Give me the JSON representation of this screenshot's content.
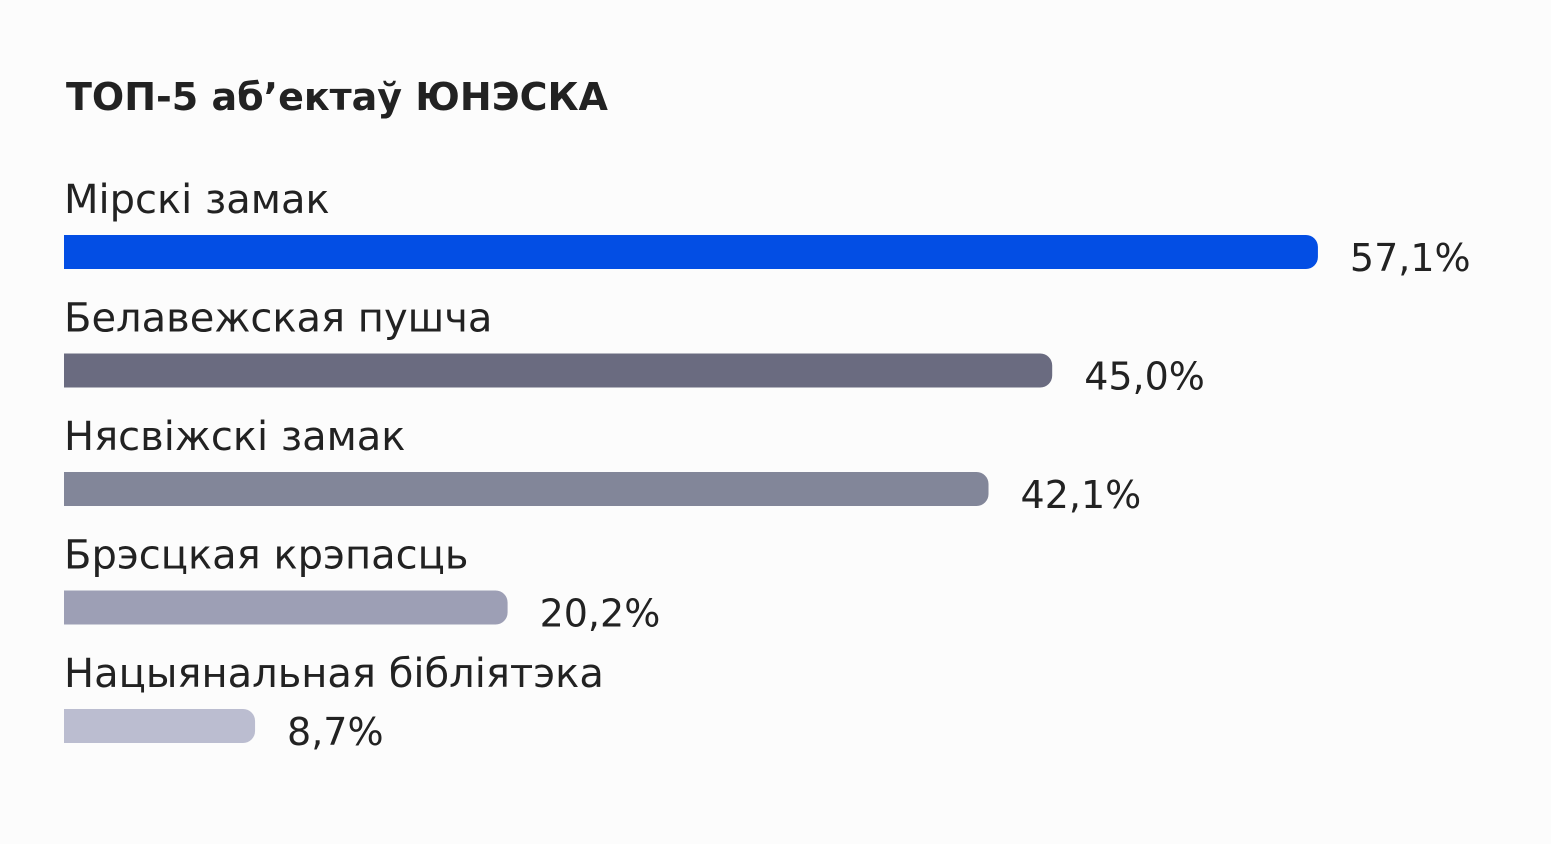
{
  "chart_data": {
    "type": "bar",
    "orientation": "horizontal",
    "title": "ТОП-5 аб’ектаў ЮНЭСКА",
    "categories": [
      "Мірскі замак",
      "Белавежская пушча",
      "Нясвіжскі замак",
      "Брэсцкая крэпасць",
      "Нацыянальная бібліятэка"
    ],
    "values": [
      57.1,
      45.0,
      42.1,
      20.2,
      8.7
    ],
    "value_labels": [
      "57,1%",
      "45,0%",
      "42,1%",
      "20,2%",
      "8,7%"
    ],
    "colors": [
      "#034ee4",
      "#6a6b80",
      "#828699",
      "#9d9fb5",
      "#bbbdd0"
    ]
  }
}
